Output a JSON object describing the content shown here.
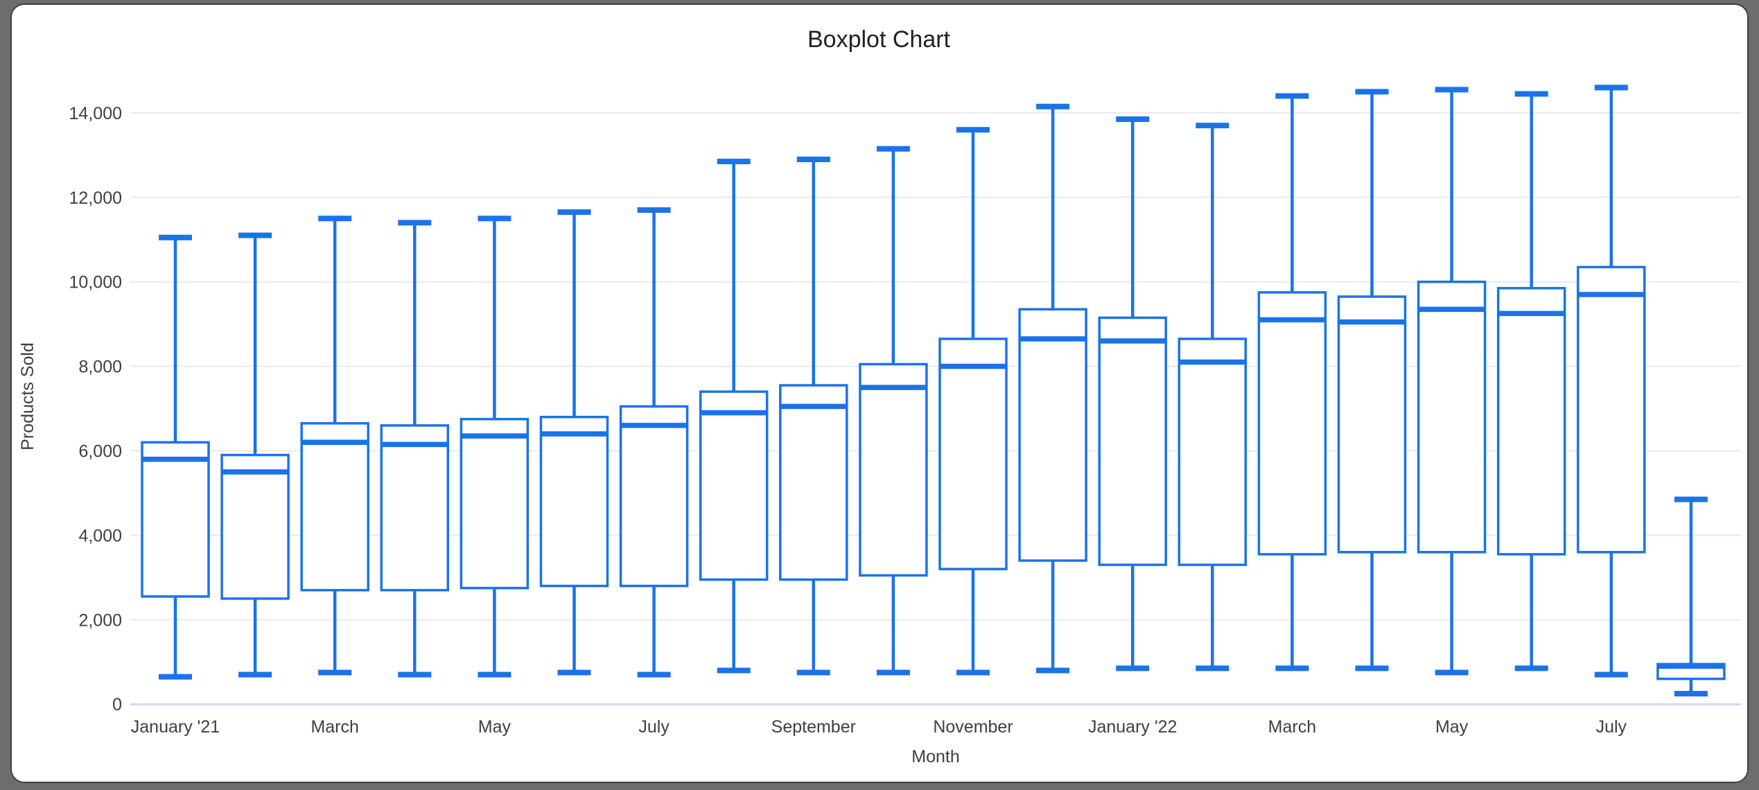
{
  "title": "Boxplot Chart",
  "y_axis": {
    "label": "Products Sold",
    "tick_labels": [
      "0",
      "2,000",
      "4,000",
      "6,000",
      "8,000",
      "10,000",
      "12,000",
      "14,000"
    ]
  },
  "x_axis": {
    "label": "Month",
    "tick_labels": [
      "January '21",
      "March",
      "May",
      "July",
      "September",
      "November",
      "January '22",
      "March",
      "May",
      "July"
    ]
  },
  "colors": {
    "box_stroke": "#1a73e8",
    "box_fill": "#ffffff",
    "gridline": "#e9e9e9",
    "baseline": "#ccd9f0",
    "tick_text": "#3c4043",
    "title_text": "#202124",
    "frame": "#6d6d6d",
    "card": "#ffffff"
  },
  "chart_data": {
    "type": "boxplot",
    "title": "Boxplot Chart",
    "xlabel": "Month",
    "ylabel": "Products Sold",
    "ylim": [
      0,
      15000
    ],
    "yticks": [
      0,
      2000,
      4000,
      6000,
      8000,
      10000,
      12000,
      14000
    ],
    "grid": true,
    "legend": "none",
    "categories": [
      "January '21",
      "",
      "March",
      "",
      "May",
      "",
      "July",
      "",
      "September",
      "",
      "November",
      "",
      "January '22",
      "",
      "March",
      "",
      "May",
      "",
      "July",
      ""
    ],
    "boxes": [
      {
        "tick": "January '21",
        "low": 650,
        "q1": 2550,
        "median": 5800,
        "q3": 6200,
        "high": 11050
      },
      {
        "tick": "",
        "low": 700,
        "q1": 2500,
        "median": 5500,
        "q3": 5900,
        "high": 11100
      },
      {
        "tick": "March",
        "low": 750,
        "q1": 2700,
        "median": 6200,
        "q3": 6650,
        "high": 11500
      },
      {
        "tick": "",
        "low": 700,
        "q1": 2700,
        "median": 6150,
        "q3": 6600,
        "high": 11400
      },
      {
        "tick": "May",
        "low": 700,
        "q1": 2750,
        "median": 6350,
        "q3": 6750,
        "high": 11500
      },
      {
        "tick": "",
        "low": 750,
        "q1": 2800,
        "median": 6400,
        "q3": 6800,
        "high": 11650
      },
      {
        "tick": "July",
        "low": 700,
        "q1": 2800,
        "median": 6600,
        "q3": 7050,
        "high": 11700
      },
      {
        "tick": "",
        "low": 800,
        "q1": 2950,
        "median": 6900,
        "q3": 7400,
        "high": 12850
      },
      {
        "tick": "September",
        "low": 750,
        "q1": 2950,
        "median": 7050,
        "q3": 7550,
        "high": 12900
      },
      {
        "tick": "",
        "low": 750,
        "q1": 3050,
        "median": 7500,
        "q3": 8050,
        "high": 13150
      },
      {
        "tick": "November",
        "low": 750,
        "q1": 3200,
        "median": 8000,
        "q3": 8650,
        "high": 13600
      },
      {
        "tick": "",
        "low": 800,
        "q1": 3400,
        "median": 8650,
        "q3": 9350,
        "high": 14150
      },
      {
        "tick": "January '22",
        "low": 850,
        "q1": 3300,
        "median": 8600,
        "q3": 9150,
        "high": 13850
      },
      {
        "tick": "",
        "low": 850,
        "q1": 3300,
        "median": 8100,
        "q3": 8650,
        "high": 13700
      },
      {
        "tick": "March",
        "low": 850,
        "q1": 3550,
        "median": 9100,
        "q3": 9750,
        "high": 14400
      },
      {
        "tick": "",
        "low": 850,
        "q1": 3600,
        "median": 9050,
        "q3": 9650,
        "high": 14500
      },
      {
        "tick": "May",
        "low": 750,
        "q1": 3600,
        "median": 9350,
        "q3": 10000,
        "high": 14550
      },
      {
        "tick": "",
        "low": 850,
        "q1": 3550,
        "median": 9250,
        "q3": 9850,
        "high": 14450
      },
      {
        "tick": "July",
        "low": 700,
        "q1": 3600,
        "median": 9700,
        "q3": 10350,
        "high": 14600
      },
      {
        "tick": "",
        "low": 250,
        "q1": 600,
        "median": 900,
        "q3": 950,
        "high": 4850
      }
    ]
  }
}
